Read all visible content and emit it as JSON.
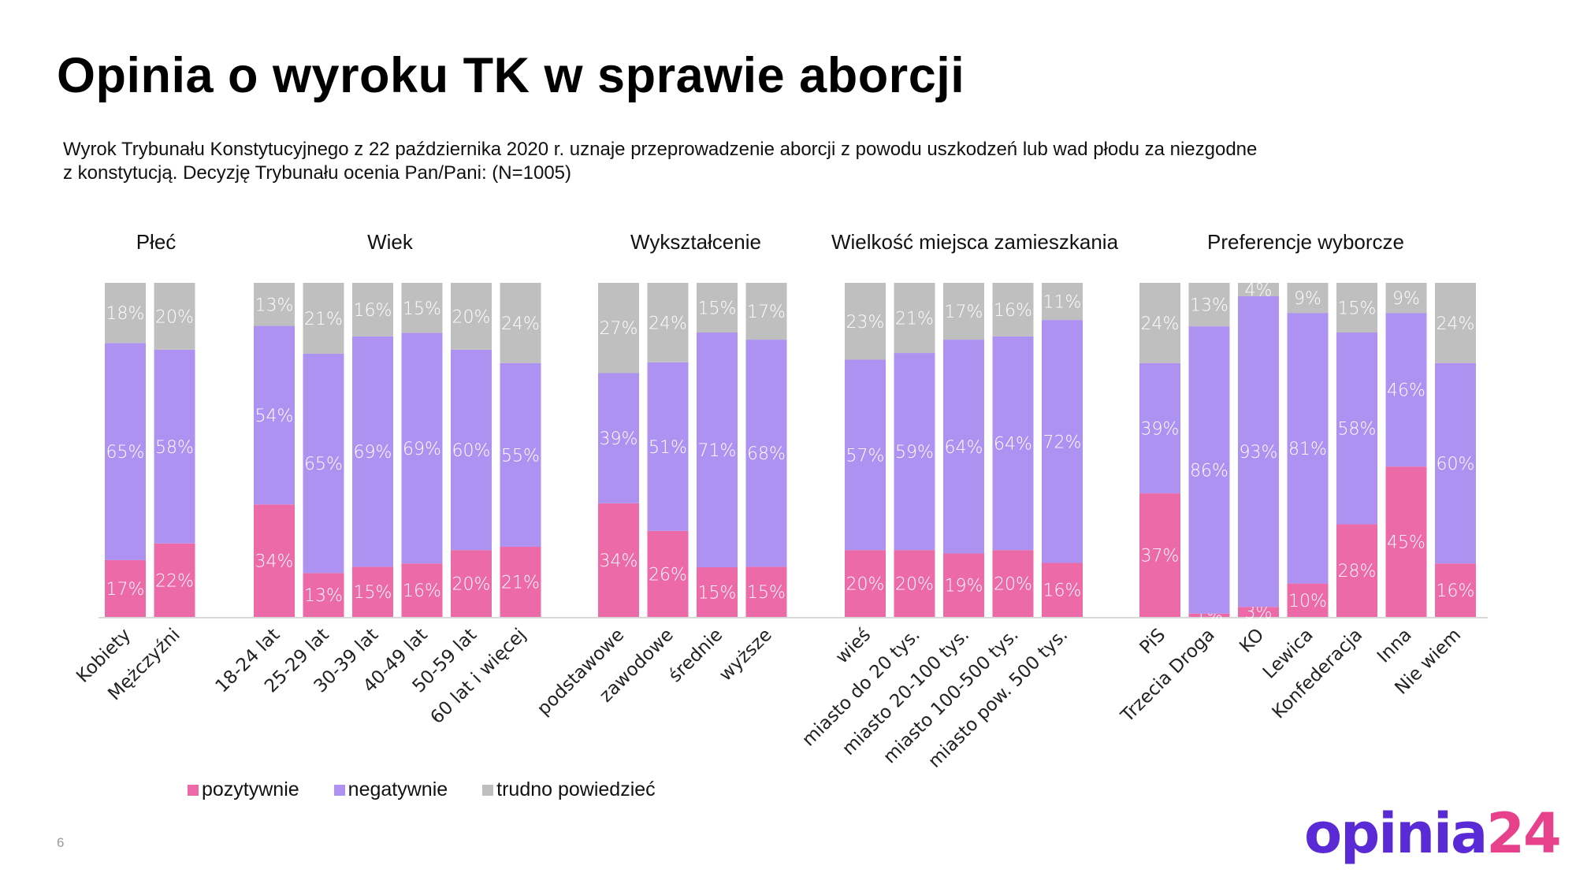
{
  "title": "Opinia o wyroku TK w sprawie aborcji",
  "subtitle": {
    "line1": "Wyrok Trybunału Konstytucyjnego z 22 października 2020 r. uznaje przeprowadzenie aborcji z powodu uszkodzeń lub wad płodu za niezgodne",
    "line2": "z konstytucją. Decyzję Trybunału ocenia Pan/Pani: (N=1005)"
  },
  "colors": {
    "pozytywnie": "#EC6AA8",
    "negatywnie": "#AE92F2",
    "trudno": "#BFBFBF",
    "logo_primary": "#5A2AD6",
    "logo_accent": "#E8418C"
  },
  "legend": [
    {
      "label": "pozytywnie",
      "color": "#EC6AA8"
    },
    {
      "label": "negatywnie",
      "color": "#AE92F2"
    },
    {
      "label": "trudno powiedzieć",
      "color": "#BFBFBF"
    }
  ],
  "page_number": "6",
  "logo": {
    "part1": "opinia",
    "part2": "24"
  },
  "chart_data": {
    "type": "bar",
    "stacked": true,
    "percent_stacked": true,
    "title": "Opinia o wyroku TK w sprawie aborcji",
    "xlabel": "",
    "ylabel": "",
    "ylim": [
      0,
      100
    ],
    "grid": false,
    "legend_position": "bottom-left",
    "series_names": [
      "pozytywnie",
      "negatywnie",
      "trudno powiedzieć"
    ],
    "groups": [
      {
        "title": "Płeć",
        "categories": [
          "Kobiety",
          "Mężczyźni"
        ],
        "pozytywnie": [
          17,
          22
        ],
        "negatywnie": [
          65,
          58
        ],
        "trudno": [
          18,
          20
        ]
      },
      {
        "title": "Wiek",
        "categories": [
          "18-24 lat",
          "25-29 lat",
          "30-39 lat",
          "40-49 lat",
          "50-59 lat",
          "60 lat i więcej"
        ],
        "pozytywnie": [
          34,
          13,
          15,
          16,
          20,
          21
        ],
        "negatywnie": [
          54,
          65,
          69,
          69,
          60,
          55
        ],
        "trudno": [
          13,
          21,
          16,
          15,
          20,
          24
        ]
      },
      {
        "title": "Wykształcenie",
        "categories": [
          "podstawowe",
          "zawodowe",
          "średnie",
          "wyższe"
        ],
        "pozytywnie": [
          34,
          26,
          15,
          15
        ],
        "negatywnie": [
          39,
          51,
          71,
          68
        ],
        "trudno": [
          27,
          24,
          15,
          17
        ]
      },
      {
        "title": "Wielkość miejsca zamieszkania",
        "categories": [
          "wieś",
          "miasto do 20 tys.",
          "miasto 20-100 tys.",
          "miasto 100-500 tys.",
          "miasto pow. 500 tys."
        ],
        "pozytywnie": [
          20,
          20,
          19,
          20,
          16
        ],
        "negatywnie": [
          57,
          59,
          64,
          64,
          72
        ],
        "trudno": [
          23,
          21,
          17,
          16,
          11
        ]
      },
      {
        "title": "Preferencje wyborcze",
        "categories": [
          "PiS",
          "Trzecia Droga",
          "KO",
          "Lewica",
          "Konfederacja",
          "Inna",
          "Nie wiem"
        ],
        "pozytywnie": [
          37,
          1,
          3,
          10,
          28,
          45,
          16
        ],
        "negatywnie": [
          39,
          86,
          93,
          81,
          58,
          46,
          60
        ],
        "trudno": [
          24,
          13,
          4,
          9,
          15,
          9,
          24
        ]
      }
    ]
  }
}
